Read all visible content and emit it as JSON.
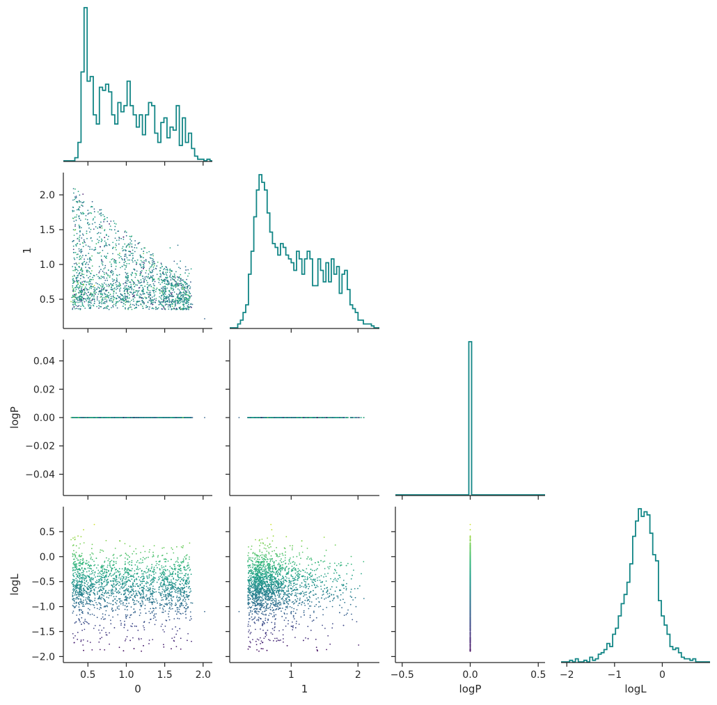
{
  "chart_data": {
    "type": "corner",
    "variables": [
      "0",
      "1",
      "logP",
      "logL"
    ],
    "color_by": "logL",
    "colormap": "viridis",
    "histogram_color": "#108585",
    "grid": false,
    "axes": {
      "0": {
        "label": "0",
        "range": [
          0.18,
          2.12
        ],
        "ticks": [
          0.5,
          1.0,
          1.5,
          2.0
        ],
        "tick_labels": [
          "0.5",
          "1.0",
          "1.5",
          "2.0"
        ]
      },
      "1": {
        "label": "1",
        "range": [
          0.08,
          2.32
        ],
        "ticks": [
          1,
          2
        ],
        "tick_labels": [
          "1",
          "2"
        ]
      },
      "1_y": {
        "label": "1",
        "range": [
          0.08,
          2.32
        ],
        "ticks": [
          0.5,
          1.0,
          1.5,
          2.0
        ],
        "tick_labels": [
          "0.5",
          "1.0",
          "1.5",
          "2.0"
        ]
      },
      "logP": {
        "label": "logP",
        "range": [
          -0.55,
          0.55
        ],
        "ticks": [
          -0.5,
          0.0,
          0.5
        ],
        "tick_labels": [
          "−0.5",
          "0.0",
          "0.5"
        ]
      },
      "logP_y": {
        "label": "logP",
        "range": [
          -0.055,
          0.055
        ],
        "ticks": [
          -0.04,
          -0.02,
          0.0,
          0.02,
          0.04
        ],
        "tick_labels": [
          "−0.04",
          "−0.02",
          "0.00",
          "0.02",
          "0.04"
        ]
      },
      "logL": {
        "label": "logL",
        "range": [
          -2.12,
          1.0
        ],
        "ticks": [
          -2,
          -1,
          0
        ],
        "tick_labels": [
          "−2",
          "−1",
          "0"
        ]
      },
      "logL_y": {
        "label": "logL",
        "range": [
          -2.12,
          1.0
        ],
        "ticks": [
          -2.0,
          -1.5,
          -1.0,
          -0.5,
          0.0,
          0.5
        ],
        "tick_labels": [
          "−2.0",
          "−1.5",
          "−1.0",
          "−0.5",
          "0.0",
          "0.5"
        ]
      }
    },
    "histograms": {
      "0": {
        "bin_edges_start": 0.17,
        "bin_width": 0.04,
        "counts": [
          0,
          0,
          0,
          0,
          2,
          12,
          58,
          100,
          52,
          55,
          30,
          24,
          48,
          46,
          50,
          45,
          30,
          24,
          38,
          32,
          36,
          52,
          36,
          30,
          22,
          30,
          17,
          30,
          38,
          36,
          18,
          12,
          25,
          28,
          15,
          22,
          20,
          36,
          10,
          28,
          12,
          18,
          8,
          3,
          1,
          1,
          0,
          1,
          0
        ]
      },
      "1": {
        "bin_edges_start": 0.08,
        "bin_width": 0.04,
        "counts": [
          0,
          0,
          0,
          2,
          4,
          8,
          12,
          28,
          40,
          58,
          72,
          80,
          76,
          72,
          60,
          50,
          44,
          42,
          38,
          44,
          42,
          38,
          36,
          34,
          30,
          40,
          36,
          28,
          36,
          40,
          36,
          22,
          22,
          36,
          30,
          24,
          34,
          24,
          36,
          28,
          32,
          18,
          28,
          30,
          20,
          12,
          10,
          8,
          4,
          4,
          2,
          2,
          2,
          1,
          0,
          0
        ]
      },
      "logP": {
        "bin_edges_start": -0.55,
        "bin_width": 0.02,
        "counts": [
          0,
          0,
          0,
          0,
          0,
          0,
          0,
          0,
          0,
          0,
          0,
          0,
          0,
          0,
          0,
          0,
          0,
          0,
          0,
          0,
          0,
          0,
          0,
          0,
          0,
          0,
          0,
          100,
          0,
          0,
          0,
          0,
          0,
          0,
          0,
          0,
          0,
          0,
          0,
          0,
          0,
          0,
          0,
          0,
          0,
          0,
          0,
          0,
          0,
          0,
          0,
          0,
          0,
          0,
          0
        ]
      },
      "logL": {
        "bin_edges_start": -2.12,
        "bin_width": 0.06,
        "counts": [
          0,
          0,
          0,
          1,
          0,
          2,
          0,
          0,
          1,
          0,
          3,
          1,
          2,
          5,
          6,
          8,
          12,
          10,
          18,
          22,
          30,
          38,
          44,
          52,
          64,
          82,
          92,
          100,
          95,
          98,
          96,
          84,
          70,
          66,
          40,
          30,
          24,
          18,
          10,
          8,
          9,
          6,
          3,
          2,
          2,
          1,
          2,
          0,
          0,
          0,
          0,
          0,
          0
        ]
      }
    },
    "scatter_note": "2000 samples; marker color mapped from logL via viridis"
  }
}
